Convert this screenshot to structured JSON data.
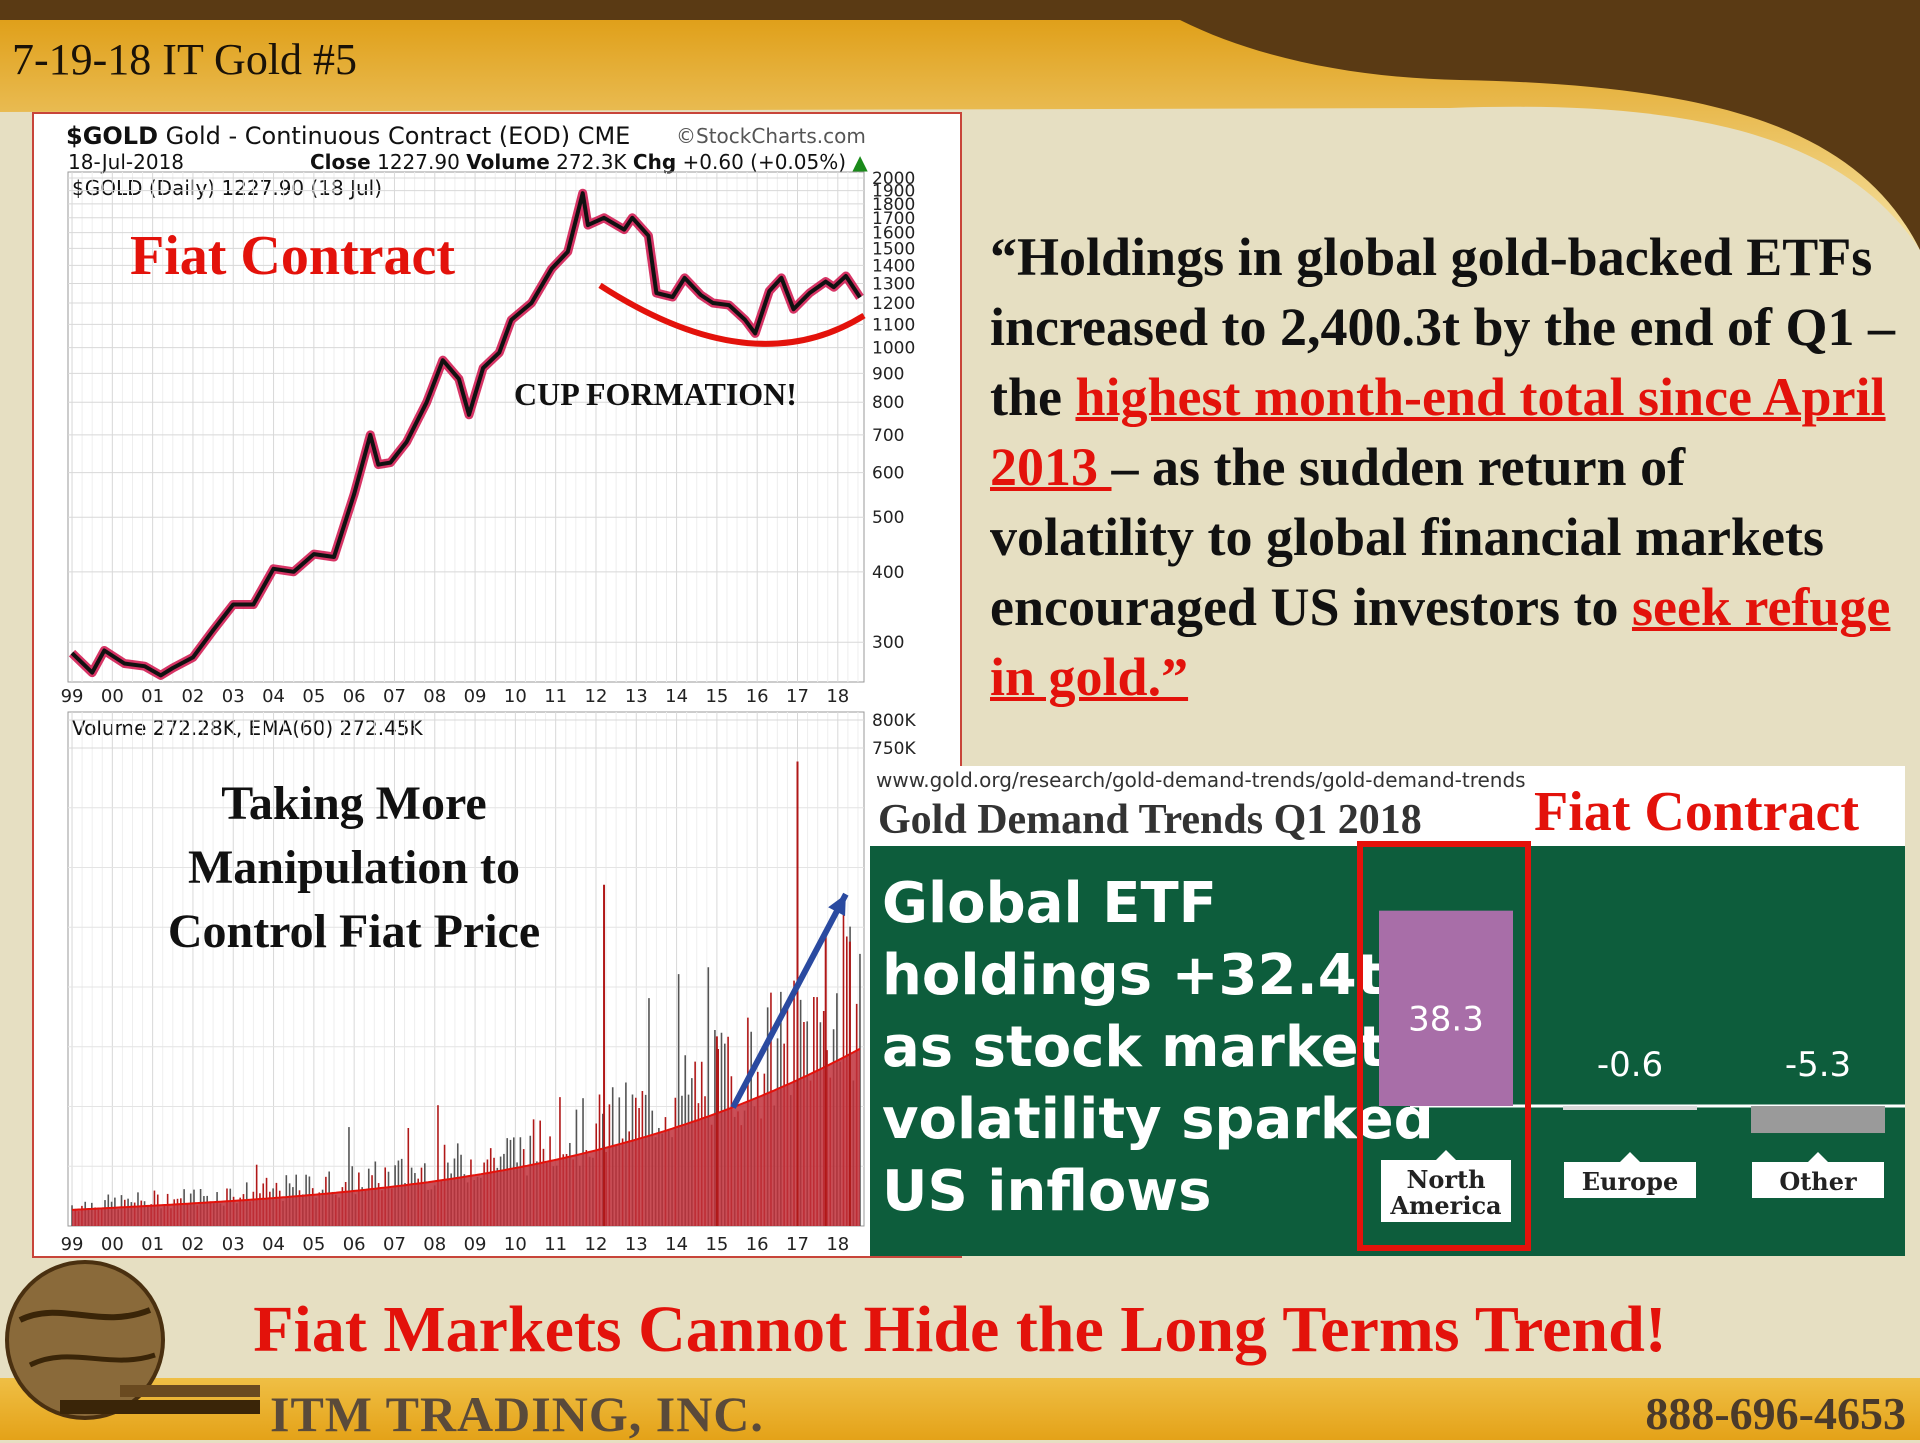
{
  "slide": {
    "title": "7-19-18 IT Gold #5",
    "bottom_headline": "Fiat Markets Cannot Hide the Long Terms Trend!",
    "footer_company": "ITM TRADING, INC.",
    "footer_phone": "888-696-4653"
  },
  "stockchart": {
    "symbol": "$GOLD",
    "description": "Gold - Continuous Contract (EOD)",
    "exchange": "CME",
    "source": "©StockCharts.com",
    "date": "18-Jul-2018",
    "close_label": "Close",
    "close_value": "1227.90",
    "volume_label": "Volume",
    "volume_value": "272.3K",
    "chg_label": "Chg",
    "chg_value": "+0.60 (+0.05%)",
    "price_legend": "$GOLD (Daily) 1227.90 (18 Jul)",
    "volume_legend": "Volume 272.28K, EMA(60) 272.45K",
    "annotation_fiat": "Fiat Contract",
    "annotation_cup": "CUP FORMATION!",
    "annotation_manip_1": "Taking More",
    "annotation_manip_2": "Manipulation to",
    "annotation_manip_3": "Control Fiat Price"
  },
  "quote": {
    "part1": "“Holdings in global gold-backed ETFs increased to 2,400.3t by the end of Q1 – the ",
    "highlight1": "highest month-end total since April 2013 ",
    "part2": "– as the sudden return of volatility to global financial markets encouraged US investors to ",
    "highlight2": "seek refuge in gold.”"
  },
  "wgc": {
    "url": "www.gold.org/research/gold-demand-trends/gold-demand-trends",
    "title": "Gold Demand Trends Q1 2018",
    "fiat_label": "Fiat Contract",
    "headline_1": "Global ETF",
    "headline_2": "holdings +32.4t",
    "headline_3": "as stock market",
    "headline_4": "volatility sparked",
    "headline_5": "US inflows"
  },
  "colors": {
    "accent_red": "#e3120b",
    "wgc_green": "#0d5d3c",
    "bar_purple": "#a86ea8",
    "bar_gray": "#9a9a9a",
    "brown_band": "#5a3a14",
    "gold_band": "#e1a517"
  },
  "chart_data": [
    {
      "type": "line",
      "name_ref": "gold_price",
      "yscale": "log",
      "y_ticks": [
        2000,
        1900,
        1800,
        1700,
        1600,
        1500,
        1400,
        1300,
        1200,
        1100,
        1000,
        900,
        800,
        700,
        600,
        500,
        400,
        300
      ],
      "x_tick_labels": [
        "99",
        "00",
        "01",
        "02",
        "03",
        "04",
        "05",
        "06",
        "07",
        "08",
        "09",
        "10",
        "11",
        "12",
        "13",
        "14",
        "15",
        "16",
        "17",
        "18"
      ],
      "x": [
        1999.0,
        1999.5,
        1999.8,
        2000.3,
        2000.8,
        2001.2,
        2001.5,
        2002.0,
        2002.5,
        2003.0,
        2003.5,
        2004.0,
        2004.5,
        2005.0,
        2005.5,
        2006.0,
        2006.4,
        2006.6,
        2006.9,
        2007.3,
        2007.8,
        2008.2,
        2008.6,
        2008.85,
        2009.2,
        2009.6,
        2009.9,
        2010.4,
        2010.9,
        2011.3,
        2011.67,
        2011.8,
        2012.2,
        2012.7,
        2012.9,
        2013.3,
        2013.5,
        2013.9,
        2014.2,
        2014.6,
        2014.9,
        2015.3,
        2015.7,
        2015.95,
        2016.3,
        2016.6,
        2016.9,
        2017.3,
        2017.7,
        2017.9,
        2018.2,
        2018.55
      ],
      "y": [
        287,
        265,
        290,
        275,
        272,
        262,
        270,
        282,
        315,
        350,
        350,
        405,
        400,
        430,
        425,
        550,
        700,
        620,
        625,
        680,
        800,
        950,
        880,
        760,
        920,
        980,
        1120,
        1200,
        1380,
        1480,
        1880,
        1650,
        1700,
        1620,
        1700,
        1580,
        1250,
        1230,
        1330,
        1240,
        1200,
        1190,
        1120,
        1060,
        1260,
        1330,
        1170,
        1250,
        1310,
        1280,
        1340,
        1228
      ]
    },
    {
      "type": "bar",
      "name_ref": "gold_volume",
      "y_ticks_labels": [
        "800K",
        "750K"
      ],
      "x_tick_labels": [
        "99",
        "00",
        "01",
        "02",
        "03",
        "04",
        "05",
        "06",
        "07",
        "08",
        "09",
        "10",
        "11",
        "12",
        "13",
        "14",
        "15",
        "16",
        "17",
        "18"
      ]
    },
    {
      "type": "bar",
      "categories": [
        "North America",
        "Europe",
        "Other"
      ],
      "values": [
        38.3,
        -0.6,
        -5.3
      ],
      "value_labels": [
        "38.3",
        "-0.6",
        "-5.3"
      ]
    }
  ]
}
